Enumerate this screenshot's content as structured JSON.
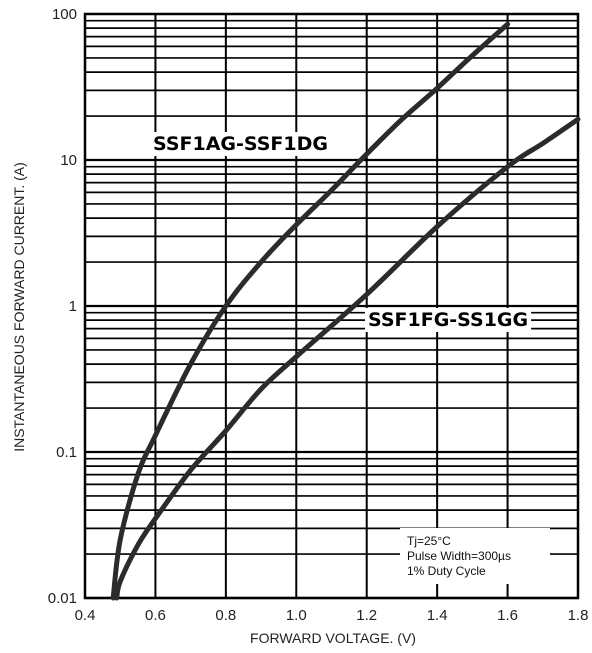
{
  "chart_data": {
    "type": "line",
    "xlabel": "FORWARD VOLTAGE. (V)",
    "ylabel": "INSTANTANEOUS FORWARD CURRENT. (A)",
    "xlim": [
      0.4,
      1.8
    ],
    "ylim": [
      0.01,
      100
    ],
    "yscale": "log",
    "grid": true,
    "x_ticks": [
      "0.4",
      "0.6",
      "0.8",
      "1.0",
      "1.2",
      "1.4",
      "1.6",
      "1.8"
    ],
    "y_ticks": [
      "0.01",
      "0.1",
      "1",
      "10",
      "100"
    ],
    "series": [
      {
        "name": "SSF1AG-SSF1DG",
        "x": [
          0.48,
          0.5,
          0.55,
          0.6,
          0.7,
          0.8,
          0.9,
          1.0,
          1.1,
          1.2,
          1.3,
          1.4,
          1.5,
          1.6
        ],
        "y": [
          0.01,
          0.025,
          0.07,
          0.13,
          0.4,
          1.0,
          2.0,
          3.6,
          6.2,
          11,
          19,
          31,
          52,
          85
        ]
      },
      {
        "name": "SSF1FG-SS1GG",
        "x": [
          0.49,
          0.5,
          0.55,
          0.6,
          0.7,
          0.8,
          0.9,
          1.0,
          1.2,
          1.4,
          1.6,
          1.7,
          1.8
        ],
        "y": [
          0.01,
          0.013,
          0.023,
          0.035,
          0.075,
          0.14,
          0.27,
          0.45,
          1.2,
          3.5,
          9.0,
          13,
          19
        ]
      }
    ],
    "annotations": [
      "Tj=25°C",
      "Pulse Width=300µs",
      "1% Duty Cycle"
    ]
  }
}
